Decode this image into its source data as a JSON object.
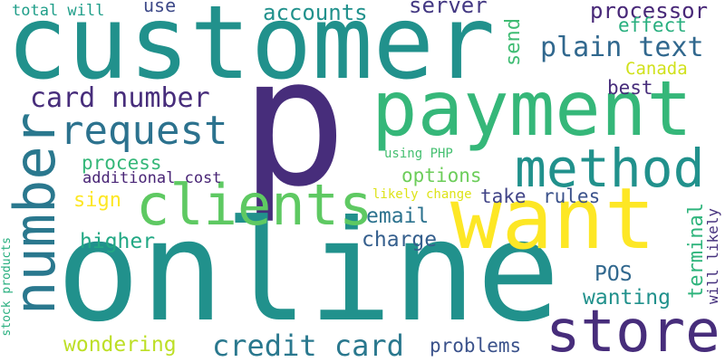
{
  "words": [
    {
      "id": "customer",
      "text": "customer",
      "color": "#21918c"
    },
    {
      "id": "p",
      "text": "p",
      "color": "#472d7b"
    },
    {
      "id": "online",
      "text": "online",
      "color": "#21918c"
    },
    {
      "id": "payment",
      "text": "payment",
      "color": "#35b779"
    },
    {
      "id": "want",
      "text": "want",
      "color": "#fde725"
    },
    {
      "id": "number",
      "text": "number",
      "color": "#2a788e"
    },
    {
      "id": "clients",
      "text": "clients",
      "color": "#5ec962"
    },
    {
      "id": "method",
      "text": "method",
      "color": "#21918c"
    },
    {
      "id": "store",
      "text": "store",
      "color": "#472d7b"
    },
    {
      "id": "request",
      "text": "request",
      "color": "#2c728e"
    },
    {
      "id": "card_number",
      "text": "card number",
      "color": "#472d7b"
    },
    {
      "id": "plain_text",
      "text": "plain text",
      "color": "#31688e"
    },
    {
      "id": "credit_card",
      "text": "credit card",
      "color": "#2a788e"
    },
    {
      "id": "accounts",
      "text": "accounts",
      "color": "#21918c"
    },
    {
      "id": "processor",
      "text": "processor",
      "color": "#482878"
    },
    {
      "id": "server",
      "text": "server",
      "color": "#443983"
    },
    {
      "id": "effect",
      "text": "effect",
      "color": "#29af7f"
    },
    {
      "id": "send",
      "text": "send",
      "color": "#3fbc73"
    },
    {
      "id": "canada",
      "text": "Canada",
      "color": "#d0e11c"
    },
    {
      "id": "best",
      "text": "best",
      "color": "#472d7b"
    },
    {
      "id": "use",
      "text": "use",
      "color": "#3e4a89"
    },
    {
      "id": "total_will",
      "text": "total will",
      "color": "#1f9e89"
    },
    {
      "id": "process",
      "text": "process",
      "color": "#35b779"
    },
    {
      "id": "additional_cost",
      "text": "additional cost",
      "color": "#482475"
    },
    {
      "id": "options",
      "text": "options",
      "color": "#6ccd5a"
    },
    {
      "id": "using_php",
      "text": "using PHP",
      "color": "#44bf70"
    },
    {
      "id": "likely_change",
      "text": "likely change",
      "color": "#dde318"
    },
    {
      "id": "sign",
      "text": "sign",
      "color": "#fde725"
    },
    {
      "id": "take",
      "text": "take",
      "color": "#414487"
    },
    {
      "id": "rules",
      "text": "rules",
      "color": "#3b528b"
    },
    {
      "id": "email",
      "text": "email",
      "color": "#2c728e"
    },
    {
      "id": "charge",
      "text": "charge",
      "color": "#355f8d"
    },
    {
      "id": "higher",
      "text": "higher",
      "color": "#22a884"
    },
    {
      "id": "terminal",
      "text": "terminal",
      "color": "#2fb47c"
    },
    {
      "id": "will_likely",
      "text": "will likely",
      "color": "#46327e"
    },
    {
      "id": "stock_products",
      "text": "stock products",
      "color": "#29af7f"
    },
    {
      "id": "pos",
      "text": "POS",
      "color": "#31688e"
    },
    {
      "id": "wanting",
      "text": "wanting",
      "color": "#21918c"
    },
    {
      "id": "wondering",
      "text": "wondering",
      "color": "#bddf26"
    },
    {
      "id": "problems",
      "text": "problems",
      "color": "#3b528b"
    }
  ]
}
